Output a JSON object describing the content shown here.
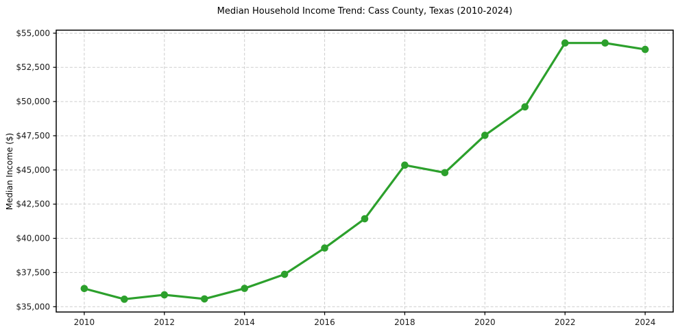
{
  "chart_data": {
    "type": "line",
    "title": "Median Household Income Trend: Cass County, Texas (2010-2024)",
    "xlabel": "",
    "ylabel": "Median Income ($)",
    "x": [
      2010,
      2011,
      2012,
      2013,
      2014,
      2015,
      2016,
      2017,
      2018,
      2019,
      2020,
      2021,
      2022,
      2023,
      2024
    ],
    "values": [
      36330,
      35550,
      35870,
      35570,
      36340,
      37370,
      39290,
      41430,
      45350,
      44800,
      47530,
      49610,
      54280,
      54280,
      53810
    ],
    "series_name": "Median Household Income",
    "xticks": {
      "values": [
        2010,
        2012,
        2014,
        2016,
        2018,
        2020,
        2022,
        2024
      ],
      "labels": [
        "2010",
        "2012",
        "2014",
        "2016",
        "2018",
        "2020",
        "2022",
        "2024"
      ]
    },
    "yticks": {
      "values": [
        35000,
        37500,
        40000,
        42500,
        45000,
        47500,
        50000,
        52500,
        55000
      ],
      "labels": [
        "$35,000",
        "$37,500",
        "$40,000",
        "$42,500",
        "$45,000",
        "$47,500",
        "$50,000",
        "$52,500",
        "$55,000"
      ]
    },
    "xlim": [
      2009.3,
      2024.7
    ],
    "ylim": [
      34614,
      55217
    ],
    "grid": true,
    "grid_style": "dashed",
    "legend_position": "none",
    "line_color": "#2ca02c",
    "marker_color": "#2ca02c",
    "grid_color": "#cdcdcd",
    "axis_color": "#000000",
    "background_color": "#ffffff"
  }
}
